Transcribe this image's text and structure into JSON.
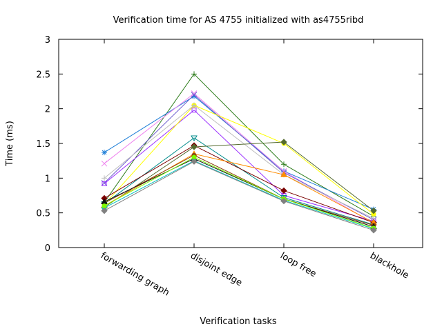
{
  "chart_data": {
    "type": "line",
    "title": "Verification time for AS 4755 initialized with as4755ribd",
    "xlabel": "Verification tasks",
    "ylabel": "Time (ms)",
    "categories": [
      "forwarding graph",
      "disjoint edge",
      "loop free",
      "blackhole"
    ],
    "ylim": [
      0,
      3
    ],
    "yticks": [
      "0",
      "0.5",
      "1",
      "1.5",
      "2",
      "2.5",
      "3"
    ],
    "grid": false,
    "legend": "none",
    "series": [
      {
        "color": "#2e7d1c",
        "marker": "plus",
        "values": [
          0.65,
          2.5,
          1.2,
          0.45
        ]
      },
      {
        "color": "#1e7fd8",
        "marker": "star",
        "values": [
          1.37,
          2.18,
          1.1,
          0.55
        ]
      },
      {
        "color": "#ee82ee",
        "marker": "x",
        "values": [
          1.21,
          2.22,
          1.1,
          0.35
        ]
      },
      {
        "color": "#6a5acd",
        "marker": "x",
        "values": [
          0.93,
          2.2,
          1.08,
          0.4
        ]
      },
      {
        "color": "#9b30ff",
        "marker": "square",
        "values": [
          0.92,
          1.98,
          0.75,
          0.38
        ]
      },
      {
        "color": "#ffff00",
        "marker": "circle",
        "values": [
          0.62,
          2.05,
          1.5,
          0.48
        ]
      },
      {
        "color": "#bdbdbd",
        "marker": "plus",
        "values": [
          1.0,
          2.05,
          1.05,
          0.42
        ]
      },
      {
        "color": "#008b8b",
        "marker": "triangle-down",
        "values": [
          0.63,
          1.58,
          0.72,
          0.33
        ]
      },
      {
        "color": "#7a0000",
        "marker": "diamond",
        "values": [
          0.71,
          1.47,
          0.82,
          0.36
        ]
      },
      {
        "color": "#556b2f",
        "marker": "diamond",
        "values": [
          0.58,
          1.45,
          1.52,
          0.53
        ]
      },
      {
        "color": "#ff8c00",
        "marker": "triangle",
        "values": [
          0.6,
          1.35,
          1.05,
          0.36
        ]
      },
      {
        "color": "#8b4513",
        "marker": "circle",
        "values": [
          0.64,
          1.33,
          0.7,
          0.32
        ]
      },
      {
        "color": "#111111",
        "marker": "triangle",
        "values": [
          0.66,
          1.28,
          0.7,
          0.3
        ]
      },
      {
        "color": "#00bfbf",
        "marker": "circle",
        "values": [
          0.57,
          1.25,
          0.68,
          0.27
        ]
      },
      {
        "color": "#7cfc00",
        "marker": "circle",
        "values": [
          0.6,
          1.3,
          0.7,
          0.28
        ]
      },
      {
        "color": "#808080",
        "marker": "diamond",
        "values": [
          0.53,
          1.24,
          0.67,
          0.25
        ]
      }
    ]
  }
}
